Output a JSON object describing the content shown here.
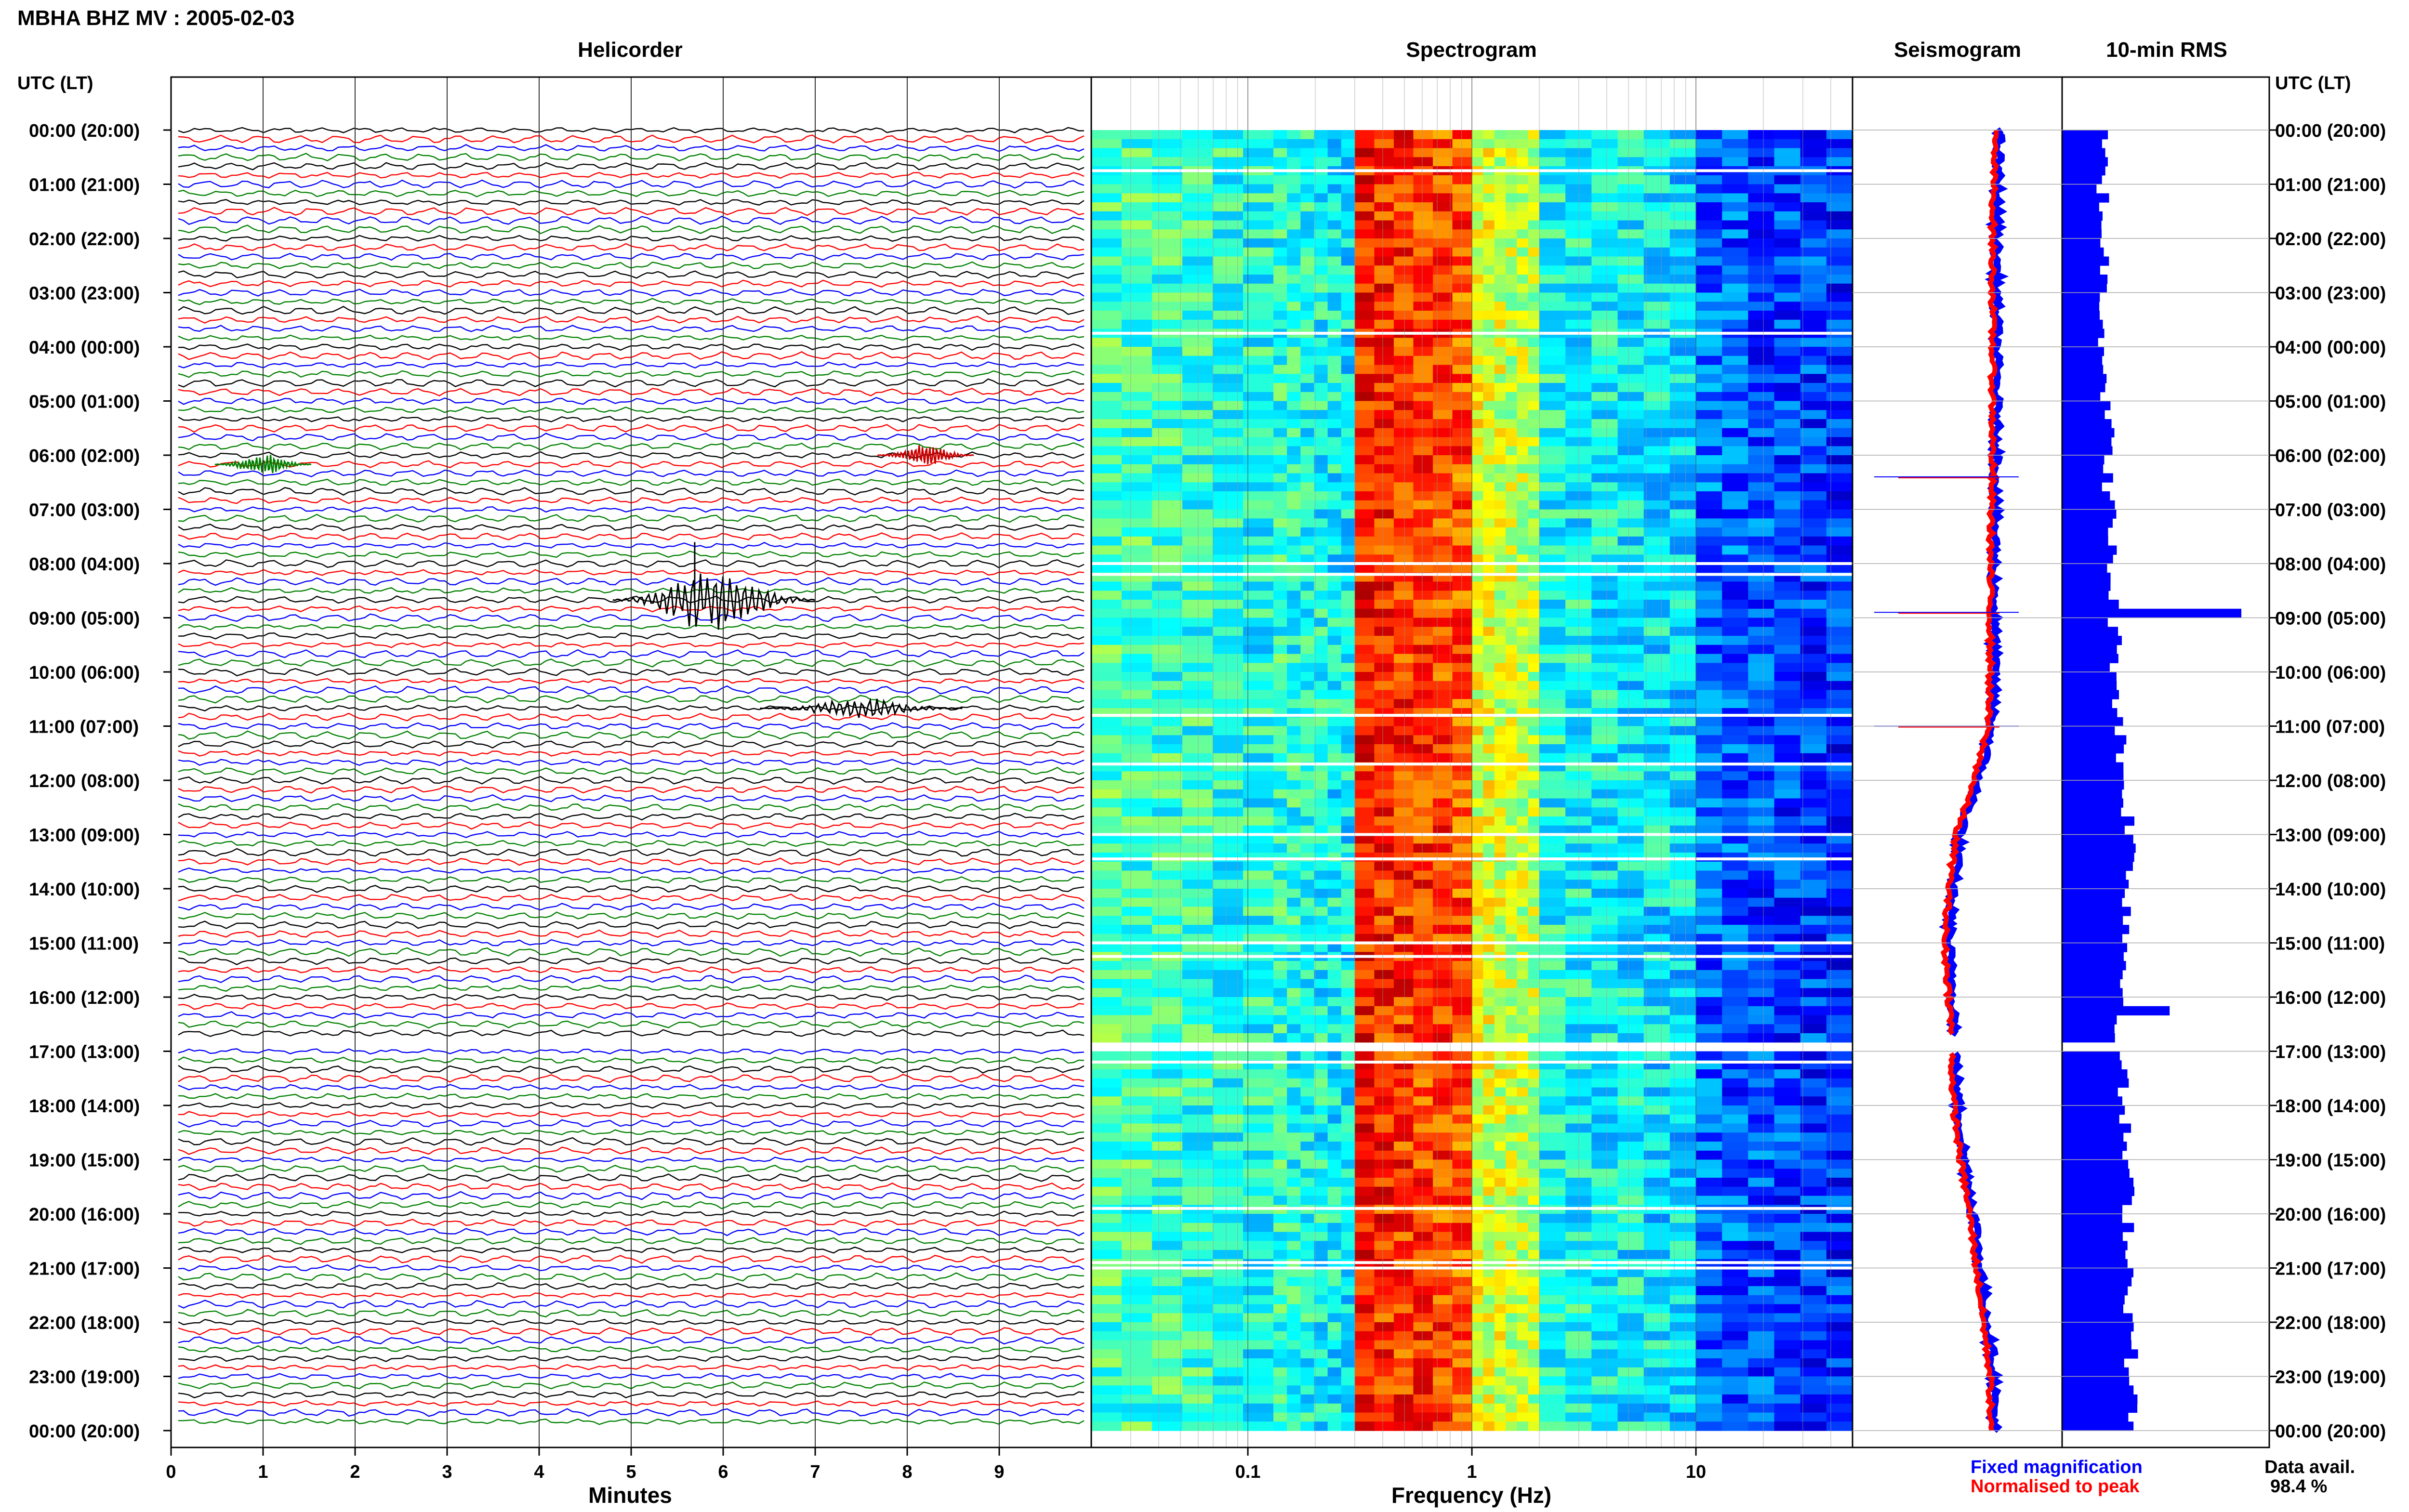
{
  "header": {
    "title": "MBHA BHZ MV : 2005-02-03"
  },
  "panels": {
    "helicorder": "Helicorder",
    "spectrogram": "Spectrogram",
    "seismogram": "Seismogram",
    "rms": "10-min RMS"
  },
  "axes": {
    "time_label_left": "UTC (LT)",
    "time_label_right": "UTC (LT)",
    "helicorder_xlabel": "Minutes",
    "spectrogram_xlabel": "Frequency (Hz)"
  },
  "legend": {
    "fixed": "Fixed magnification",
    "normalised": "Normalised to peak",
    "fixed_color": "#0000ff",
    "normalised_color": "#ff0000"
  },
  "data_availability": {
    "label": "Data avail.",
    "value": "98.4 %"
  },
  "colors": {
    "trace_cycle": [
      "#000000",
      "#ff0000",
      "#0000ff",
      "#008000"
    ]
  },
  "chart_data": [
    {
      "type": "line",
      "title": "Helicorder",
      "xlabel": "Minutes",
      "ylabel": "UTC (LT)",
      "x_ticks": [
        "0",
        "1",
        "2",
        "3",
        "4",
        "5",
        "6",
        "7",
        "8",
        "9"
      ],
      "xlim": [
        0,
        10
      ],
      "y_ticks": [
        "00:00 (20:00)",
        "01:00 (21:00)",
        "02:00 (22:00)",
        "03:00 (23:00)",
        "04:00 (00:00)",
        "05:00 (01:00)",
        "06:00 (02:00)",
        "07:00 (03:00)",
        "08:00 (04:00)",
        "09:00 (05:00)",
        "10:00 (06:00)",
        "11:00 (07:00)",
        "12:00 (08:00)",
        "13:00 (09:00)",
        "14:00 (10:00)",
        "15:00 (11:00)",
        "16:00 (12:00)",
        "17:00 (13:00)",
        "18:00 (14:00)",
        "19:00 (15:00)",
        "20:00 (16:00)",
        "21:00 (17:00)",
        "22:00 (18:00)",
        "23:00 (19:00)",
        "00:00 (20:00)"
      ],
      "lines": 144,
      "minutes_per_line": 10,
      "gap_hours": [
        16.7,
        17.0
      ],
      "events": [
        {
          "hour": 6.17,
          "minute": 1.0,
          "color": "green"
        },
        {
          "hour": 6.0,
          "minute": 8.2,
          "color": "red"
        },
        {
          "hour": 8.67,
          "minute": 5.9,
          "color": "black"
        },
        {
          "hour": 10.67,
          "minute": 7.5,
          "color": "black"
        }
      ]
    },
    {
      "type": "heatmap",
      "title": "Spectrogram",
      "xlabel": "Frequency (Hz)",
      "x_scale": "log",
      "xlim": [
        0.02,
        50
      ],
      "x_ticks": [
        "0.1",
        "1",
        "10"
      ],
      "ylim": [
        0,
        24
      ],
      "gap_hours": [
        16.7,
        17.0
      ],
      "band_edges_hz": [
        0.13,
        0.3,
        1.0,
        2.0,
        10.0
      ],
      "band_intensity": [
        0.45,
        0.42,
        0.85,
        0.6,
        0.4,
        0.22,
        0.05
      ]
    },
    {
      "type": "line",
      "title": "Seismogram",
      "series": [
        {
          "name": "Fixed magnification",
          "color": "#0000ff"
        },
        {
          "name": "Normalised to peak",
          "color": "#ff0000"
        }
      ],
      "hours": [
        0,
        2,
        4,
        6,
        8,
        10,
        11,
        12,
        13,
        14,
        15,
        16,
        16.6,
        17,
        18,
        19,
        20,
        21,
        22,
        23,
        24
      ],
      "offset": [
        0.55,
        0.5,
        0.5,
        0.5,
        0.45,
        0.45,
        0.4,
        0.1,
        -0.3,
        -0.45,
        -0.55,
        -0.45,
        -0.4,
        -0.4,
        -0.35,
        -0.2,
        0.0,
        0.15,
        0.3,
        0.45,
        0.45
      ],
      "events_hours": [
        6.4,
        8.9,
        11.0
      ]
    },
    {
      "type": "bar",
      "title": "10-min RMS",
      "orientation": "horizontal",
      "gap_hours": [
        16.7,
        17.0
      ],
      "peaks": [
        {
          "hour": 3.8,
          "value": 0.8
        },
        {
          "hour": 8.83,
          "value": 6.0
        },
        {
          "hour": 16.1,
          "value": 3.6
        }
      ],
      "baseline_hours": [
        0,
        4,
        8,
        12,
        13,
        16,
        17,
        20,
        24
      ],
      "baseline_values": [
        1.3,
        1.4,
        1.6,
        2.0,
        2.3,
        2.0,
        1.9,
        2.2,
        2.3
      ]
    }
  ]
}
